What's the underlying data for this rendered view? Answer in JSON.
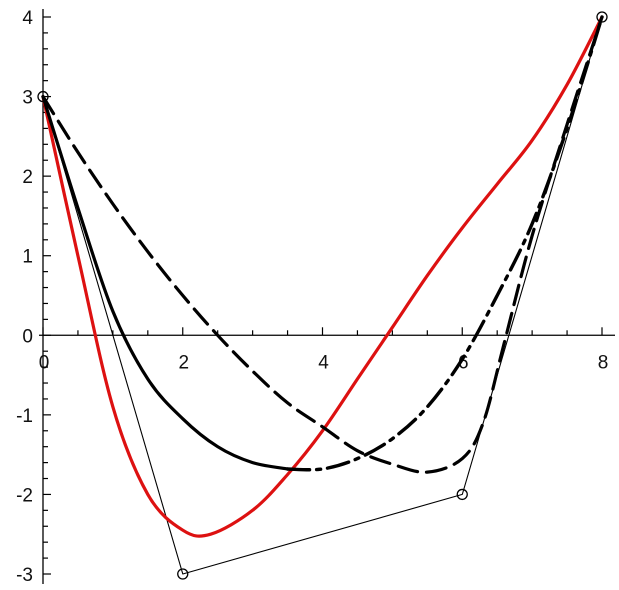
{
  "chart_data": {
    "type": "line",
    "title": "",
    "xlabel": "",
    "ylabel": "",
    "xlim": [
      0,
      8
    ],
    "ylim": [
      -3,
      4
    ],
    "grid": false,
    "x_ticks": [
      "0",
      "2",
      "4",
      "6",
      "8"
    ],
    "y_ticks": [
      "4",
      "3",
      "2",
      "1",
      "0",
      "-1",
      "-2",
      "-3"
    ],
    "control_points": [
      [
        0,
        3
      ],
      [
        2,
        -3
      ],
      [
        6,
        -2
      ],
      [
        8,
        4
      ]
    ],
    "series": [
      {
        "color": "#000000",
        "style": "thin-solid-with-circle-markers",
        "points": [
          [
            0,
            3
          ],
          [
            2,
            -3
          ],
          [
            6,
            -2
          ],
          [
            8,
            4
          ]
        ]
      },
      {
        "color": "#dd1111",
        "style": "solid",
        "points": [
          [
            0,
            3
          ],
          [
            0.5,
            1.0
          ],
          [
            1.0,
            -0.9
          ],
          [
            1.5,
            -2.0
          ],
          [
            2.0,
            -2.45
          ],
          [
            2.4,
            -2.5
          ],
          [
            3.0,
            -2.2
          ],
          [
            3.5,
            -1.75
          ],
          [
            4.0,
            -1.2
          ],
          [
            4.5,
            -0.55
          ],
          [
            5.0,
            0.1
          ],
          [
            5.5,
            0.75
          ],
          [
            6.0,
            1.35
          ],
          [
            6.5,
            1.9
          ],
          [
            7.0,
            2.45
          ],
          [
            7.5,
            3.15
          ],
          [
            8.0,
            4.0
          ]
        ]
      },
      {
        "color": "#000000",
        "style": "solid",
        "points": [
          [
            0,
            3
          ],
          [
            0.5,
            1.6
          ],
          [
            1.0,
            0.3
          ],
          [
            1.5,
            -0.55
          ],
          [
            2.0,
            -1.05
          ],
          [
            2.5,
            -1.4
          ],
          [
            3.0,
            -1.6
          ],
          [
            3.5,
            -1.68
          ],
          [
            4.0,
            -1.68
          ],
          [
            4.5,
            -1.55
          ],
          [
            5.0,
            -1.3
          ],
          [
            5.5,
            -0.9
          ],
          [
            6.0,
            -0.3
          ],
          [
            6.5,
            0.5
          ],
          [
            7.0,
            1.4
          ],
          [
            7.5,
            2.6
          ],
          [
            8.0,
            4.0
          ]
        ]
      },
      {
        "color": "#000000",
        "style": "dash-dot",
        "points": [
          [
            0,
            3
          ],
          [
            0.5,
            1.6
          ],
          [
            1.0,
            0.3
          ],
          [
            1.5,
            -0.55
          ],
          [
            2.0,
            -1.05
          ],
          [
            2.5,
            -1.4
          ],
          [
            3.0,
            -1.6
          ],
          [
            3.5,
            -1.68
          ],
          [
            4.0,
            -1.68
          ],
          [
            4.5,
            -1.55
          ],
          [
            5.0,
            -1.3
          ],
          [
            5.5,
            -0.9
          ],
          [
            6.0,
            -0.3
          ],
          [
            6.5,
            0.5
          ],
          [
            7.0,
            1.4
          ],
          [
            7.5,
            2.6
          ],
          [
            8.0,
            4.0
          ]
        ]
      },
      {
        "color": "#000000",
        "style": "dashed",
        "points": [
          [
            0,
            3
          ],
          [
            0.5,
            2.3
          ],
          [
            1.0,
            1.65
          ],
          [
            1.5,
            1.05
          ],
          [
            2.0,
            0.5
          ],
          [
            2.5,
            0.0
          ],
          [
            3.0,
            -0.45
          ],
          [
            3.5,
            -0.85
          ],
          [
            4.0,
            -1.15
          ],
          [
            4.5,
            -1.45
          ],
          [
            5.0,
            -1.62
          ],
          [
            5.5,
            -1.72
          ],
          [
            6.0,
            -1.55
          ],
          [
            6.3,
            -1.1
          ],
          [
            6.6,
            -0.1
          ],
          [
            7.0,
            1.25
          ],
          [
            7.5,
            2.65
          ],
          [
            8.0,
            4.0
          ]
        ]
      }
    ]
  }
}
